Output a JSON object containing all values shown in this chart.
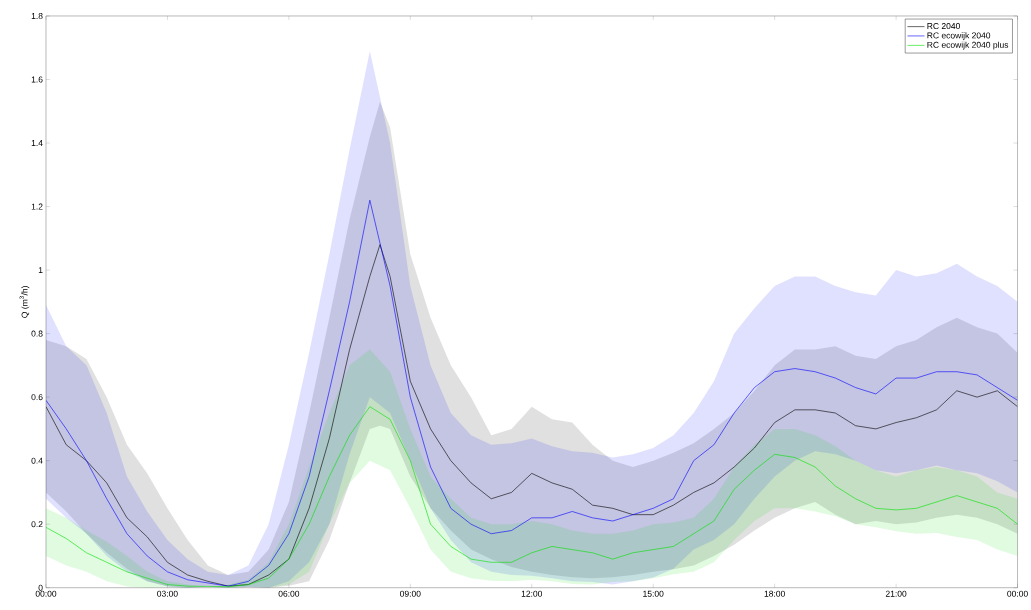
{
  "chart_data": {
    "type": "line",
    "ylabel": "Q (m$^{3}$/h)",
    "legend": "top right",
    "x": [
      0,
      0.5,
      1,
      1.5,
      2,
      2.5,
      3,
      3.5,
      4,
      4.5,
      5,
      5.5,
      6,
      6.5,
      7,
      7.5,
      8,
      8.5,
      9,
      9.5,
      10,
      10.5,
      11,
      11.5,
      12,
      12.5,
      13,
      13.5,
      14,
      14.5,
      15,
      15.5,
      16,
      16.5,
      17,
      17.5,
      18,
      18.5,
      19,
      19.5,
      20,
      20.5,
      21,
      21.5,
      22,
      22.5,
      23,
      23.5,
      24
    ],
    "xlim": [
      0,
      24
    ],
    "xticks": [
      {
        "value": 0,
        "label": "00:00"
      },
      {
        "value": 3,
        "label": "03:00"
      },
      {
        "value": 6,
        "label": "06:00"
      },
      {
        "value": 9,
        "label": "09:00"
      },
      {
        "value": 12,
        "label": "12:00"
      },
      {
        "value": 15,
        "label": "15:00"
      },
      {
        "value": 18,
        "label": "18:00"
      },
      {
        "value": 21,
        "label": "21:00"
      },
      {
        "value": 24,
        "label": "00:00"
      }
    ],
    "ylim": [
      0,
      1.8
    ],
    "yticks": [
      0,
      0.2,
      0.4,
      0.6,
      0.8,
      1,
      1.2,
      1.4,
      1.6,
      1.8
    ],
    "series": [
      {
        "name": "RC 2040",
        "color": "#000000",
        "x": [
          0,
          0.5,
          1,
          1.5,
          2,
          2.5,
          3,
          3.5,
          4,
          4.5,
          5,
          5.5,
          6,
          6.5,
          7,
          7.5,
          8,
          8.25,
          8.5,
          9,
          9.5,
          10,
          10.5,
          11,
          11.5,
          12,
          12.5,
          13,
          13.5,
          14,
          14.5,
          15,
          15.5,
          16,
          16.5,
          17,
          17.5,
          18,
          18.5,
          19,
          19.5,
          20,
          20.5,
          21,
          21.5,
          22,
          22.5,
          23,
          23.5,
          24
        ],
        "values": [
          0.57,
          0.45,
          0.4,
          0.33,
          0.22,
          0.16,
          0.08,
          0.04,
          0.02,
          0.005,
          0.01,
          0.04,
          0.09,
          0.25,
          0.47,
          0.75,
          0.98,
          1.08,
          0.98,
          0.65,
          0.5,
          0.4,
          0.33,
          0.28,
          0.3,
          0.36,
          0.33,
          0.31,
          0.26,
          0.25,
          0.23,
          0.23,
          0.26,
          0.3,
          0.33,
          0.38,
          0.44,
          0.52,
          0.56,
          0.56,
          0.55,
          0.51,
          0.5,
          0.52,
          0.535,
          0.56,
          0.62,
          0.6,
          0.62,
          0.57
        ],
        "lower": [
          0.3,
          0.24,
          0.17,
          0.11,
          0.06,
          0.02,
          0.005,
          0,
          0.003,
          0,
          0.002,
          0,
          0.006,
          0.02,
          0.15,
          0.33,
          0.5,
          0.51,
          0.5,
          0.35,
          0.25,
          0.18,
          0.12,
          0.09,
          0.065,
          0.05,
          0.04,
          0.033,
          0.03,
          0.033,
          0.04,
          0.05,
          0.058,
          0.07,
          0.1,
          0.135,
          0.18,
          0.22,
          0.25,
          0.27,
          0.23,
          0.2,
          0.21,
          0.2,
          0.205,
          0.22,
          0.23,
          0.22,
          0.2,
          0.17
        ],
        "upper": [
          0.78,
          0.76,
          0.72,
          0.6,
          0.45,
          0.36,
          0.25,
          0.15,
          0.07,
          0.04,
          0.05,
          0.12,
          0.27,
          0.55,
          0.85,
          1.16,
          1.42,
          1.53,
          1.45,
          1.05,
          0.85,
          0.7,
          0.6,
          0.48,
          0.5,
          0.57,
          0.53,
          0.52,
          0.45,
          0.4,
          0.38,
          0.4,
          0.425,
          0.455,
          0.5,
          0.55,
          0.62,
          0.7,
          0.75,
          0.75,
          0.76,
          0.73,
          0.72,
          0.76,
          0.78,
          0.82,
          0.85,
          0.82,
          0.8,
          0.74
        ]
      },
      {
        "name": "RC ecowijk 2040",
        "color": "#0000ff",
        "values": [
          0.59,
          0.5,
          0.4,
          0.28,
          0.17,
          0.1,
          0.05,
          0.025,
          0.015,
          0.005,
          0.02,
          0.07,
          0.17,
          0.35,
          0.62,
          0.9,
          1.22,
          0.95,
          0.6,
          0.38,
          0.25,
          0.2,
          0.17,
          0.18,
          0.22,
          0.22,
          0.24,
          0.22,
          0.21,
          0.23,
          0.25,
          0.28,
          0.4,
          0.45,
          0.55,
          0.63,
          0.68,
          0.69,
          0.68,
          0.66,
          0.63,
          0.61,
          0.66,
          0.66,
          0.68,
          0.68,
          0.67,
          0.63,
          0.59
        ],
        "lower": [
          0.28,
          0.22,
          0.17,
          0.1,
          0.05,
          0.02,
          0.004,
          0,
          0.003,
          0,
          0.002,
          0,
          0.02,
          0.08,
          0.2,
          0.42,
          0.6,
          0.55,
          0.4,
          0.25,
          0.15,
          0.08,
          0.05,
          0.04,
          0.038,
          0.03,
          0.02,
          0.018,
          0.01,
          0.02,
          0.032,
          0.06,
          0.12,
          0.15,
          0.2,
          0.28,
          0.35,
          0.4,
          0.43,
          0.42,
          0.4,
          0.37,
          0.36,
          0.37,
          0.385,
          0.37,
          0.36,
          0.335,
          0.3
        ],
        "upper": [
          0.89,
          0.76,
          0.7,
          0.55,
          0.35,
          0.24,
          0.15,
          0.09,
          0.05,
          0.04,
          0.07,
          0.2,
          0.45,
          0.74,
          1.05,
          1.38,
          1.69,
          1.4,
          0.95,
          0.7,
          0.55,
          0.48,
          0.45,
          0.455,
          0.47,
          0.445,
          0.43,
          0.425,
          0.41,
          0.42,
          0.44,
          0.48,
          0.55,
          0.65,
          0.8,
          0.88,
          0.95,
          0.98,
          0.98,
          0.95,
          0.93,
          0.92,
          1.0,
          0.98,
          0.99,
          1.02,
          0.98,
          0.95,
          0.9
        ]
      },
      {
        "name": "RC ecowijk 2040 plus",
        "color": "#00e000",
        "values": [
          0.19,
          0.155,
          0.11,
          0.08,
          0.05,
          0.03,
          0.01,
          0.005,
          0.004,
          0.003,
          0.01,
          0.03,
          0.09,
          0.2,
          0.35,
          0.48,
          0.57,
          0.53,
          0.4,
          0.2,
          0.13,
          0.09,
          0.08,
          0.08,
          0.11,
          0.13,
          0.12,
          0.11,
          0.09,
          0.11,
          0.12,
          0.13,
          0.17,
          0.21,
          0.31,
          0.37,
          0.42,
          0.41,
          0.38,
          0.32,
          0.28,
          0.25,
          0.245,
          0.25,
          0.27,
          0.29,
          0.27,
          0.25,
          0.2
        ],
        "lower": [
          0.1,
          0.07,
          0.05,
          0.02,
          0.004,
          0,
          0.003,
          0,
          0.002,
          0,
          0.003,
          0,
          0.01,
          0.05,
          0.2,
          0.33,
          0.4,
          0.37,
          0.25,
          0.12,
          0.05,
          0.03,
          0.022,
          0.02,
          0.025,
          0.02,
          0.012,
          0.01,
          0.018,
          0.02,
          0.03,
          0.042,
          0.05,
          0.08,
          0.15,
          0.21,
          0.25,
          0.25,
          0.24,
          0.225,
          0.2,
          0.19,
          0.178,
          0.17,
          0.172,
          0.16,
          0.15,
          0.12,
          0.1
        ],
        "upper": [
          0.25,
          0.22,
          0.18,
          0.145,
          0.1,
          0.05,
          0.02,
          0.01,
          0,
          0.01,
          0.025,
          0.08,
          0.2,
          0.38,
          0.55,
          0.7,
          0.75,
          0.68,
          0.5,
          0.35,
          0.28,
          0.22,
          0.2,
          0.2,
          0.21,
          0.2,
          0.18,
          0.17,
          0.17,
          0.18,
          0.2,
          0.205,
          0.22,
          0.28,
          0.38,
          0.45,
          0.5,
          0.5,
          0.48,
          0.445,
          0.4,
          0.37,
          0.35,
          0.37,
          0.38,
          0.37,
          0.35,
          0.3,
          0.28
        ]
      }
    ]
  }
}
